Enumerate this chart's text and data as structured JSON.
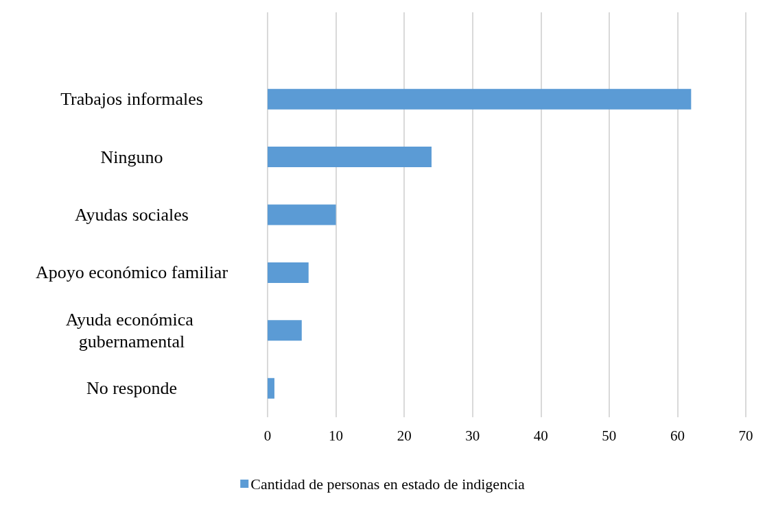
{
  "chart_data": {
    "type": "bar",
    "orientation": "horizontal",
    "categories": [
      null,
      "Trabajos informales",
      "Ninguno",
      "Ayudas sociales",
      "Apoyo económico familiar",
      "Ayuda económica gubernamental",
      "No responde"
    ],
    "series": [
      {
        "name": "Cantidad de personas en estado de indigencia",
        "color": "#5b9bd5",
        "values": [
          null,
          62,
          24,
          10,
          6,
          5,
          1
        ]
      }
    ],
    "xlim": [
      0,
      70
    ],
    "xticks": [
      0,
      10,
      20,
      30,
      40,
      50,
      60,
      70
    ],
    "grid": "x",
    "legend": "bottom"
  }
}
